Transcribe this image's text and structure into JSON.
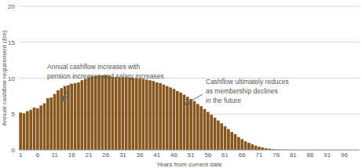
{
  "chart_data": {
    "type": "bar",
    "y_label": "Annual cashflow requirement (£m)",
    "x_label": "Years from current date",
    "categories": [
      1,
      null,
      null,
      null,
      null,
      6,
      null,
      null,
      null,
      null,
      11,
      null,
      null,
      null,
      null,
      16,
      null,
      null,
      null,
      null,
      21,
      null,
      null,
      null,
      null,
      26,
      null,
      null,
      null,
      null,
      31,
      null,
      null,
      null,
      null,
      36,
      null,
      null,
      null,
      null,
      41,
      null,
      null,
      null,
      null,
      46,
      null,
      null,
      null,
      null,
      51,
      null,
      null,
      null,
      null,
      56,
      null,
      null,
      null,
      null,
      61,
      null,
      null,
      null,
      null,
      66,
      null,
      null,
      null,
      null,
      71,
      null,
      null,
      null,
      null,
      76,
      null,
      null,
      null,
      null,
      81,
      null,
      null,
      null,
      null,
      86,
      null,
      null,
      null,
      null,
      91,
      null,
      null,
      null,
      null,
      96,
      null,
      null,
      null,
      null
    ],
    "values": [
      5.2,
      5.1,
      5.4,
      5.6,
      5.9,
      5.8,
      6.2,
      6.5,
      7.2,
      7.3,
      7.8,
      8.3,
      8.6,
      8.9,
      9.0,
      9.2,
      9.3,
      9.4,
      9.7,
      9.9,
      10.1,
      10.2,
      10.3,
      10.35,
      10.4,
      10.4,
      10.3,
      10.2,
      10.15,
      10.1,
      10.1,
      10.1,
      10.1,
      10.05,
      10.0,
      9.95,
      9.9,
      9.8,
      9.7,
      9.6,
      9.4,
      9.3,
      9.1,
      8.9,
      8.7,
      8.5,
      8.2,
      8.0,
      7.7,
      7.4,
      7.1,
      6.8,
      6.4,
      6.1,
      5.7,
      5.3,
      4.9,
      4.5,
      4.1,
      3.7,
      3.3,
      2.9,
      2.5,
      2.2,
      1.8,
      1.5,
      1.2,
      1.0,
      0.8,
      0.6,
      0.45,
      0.35,
      0.25,
      0.18,
      0.12,
      0.08,
      0.05,
      0.03,
      0.02,
      0.01,
      0,
      0,
      0,
      0,
      0,
      0,
      0,
      0,
      0,
      0,
      0,
      0,
      0,
      0,
      0,
      0,
      0,
      0,
      0,
      0
    ],
    "color": "#86561d",
    "ylim": [
      0,
      20
    ],
    "yticks": [
      0,
      5,
      10,
      15,
      20
    ],
    "grid": true,
    "annotations": [
      {
        "lines": [
          "Annual cashflow increases with",
          "pension increases and salary increases"
        ]
      },
      {
        "lines": [
          "Cashflow ultimately reduces",
          "as membership declines",
          "in the future"
        ]
      }
    ]
  }
}
